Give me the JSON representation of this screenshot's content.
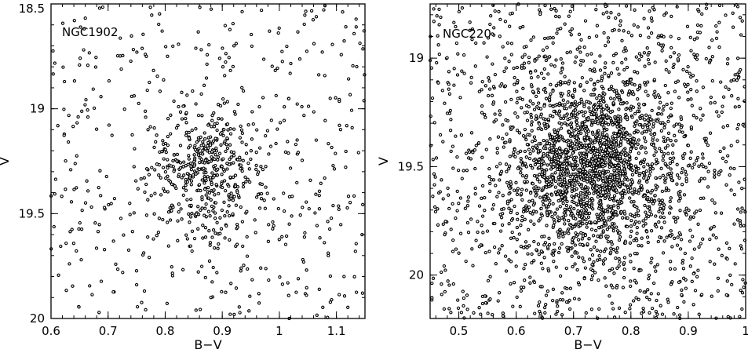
{
  "chart_data": [
    {
      "type": "scatter",
      "title": "NGC1902",
      "xlabel": "B−V",
      "ylabel": "V",
      "xlim": [
        0.6,
        1.15
      ],
      "ylim": [
        20.0,
        18.5
      ],
      "y_inverted": true,
      "xticks": [
        "0.6",
        "0.7",
        "0.8",
        "0.9",
        "1",
        "1.1"
      ],
      "yticks": [
        "18.5",
        "19",
        "19.5",
        "20"
      ],
      "grid": false,
      "color": "#000000",
      "n_points": 900,
      "distribution": {
        "field_fraction": 0.55,
        "clump_center": [
          0.87,
          19.3
        ],
        "clump_sigma": [
          0.05,
          0.16
        ],
        "seed": 1902
      }
    },
    {
      "type": "scatter",
      "title": "NGC220",
      "xlabel": "B−V",
      "ylabel": "V",
      "xlim": [
        0.45,
        1.0
      ],
      "ylim": [
        20.2,
        18.75
      ],
      "y_inverted": true,
      "xticks": [
        "0.5",
        "0.6",
        "0.7",
        "0.8",
        "0.9",
        "1"
      ],
      "yticks": [
        "19",
        "19.5",
        "20"
      ],
      "grid": false,
      "color": "#000000",
      "n_points": 3000,
      "distribution": {
        "field_fraction": 0.4,
        "clump_center": [
          0.73,
          19.5
        ],
        "clump_sigma": [
          0.07,
          0.2
        ],
        "seed": 220
      }
    }
  ]
}
